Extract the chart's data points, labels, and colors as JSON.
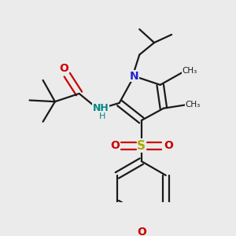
{
  "bg_color": "#ebebeb",
  "bond_color": "#1a1a1a",
  "N_color": "#2222cc",
  "O_color": "#cc0000",
  "S_color": "#aaaa00",
  "NH_color": "#008888",
  "lw": 1.6,
  "dbg": 0.012,
  "fig_size": [
    3.0,
    3.0
  ],
  "dpi": 100,
  "xlim": [
    0,
    300
  ],
  "ylim": [
    0,
    300
  ]
}
